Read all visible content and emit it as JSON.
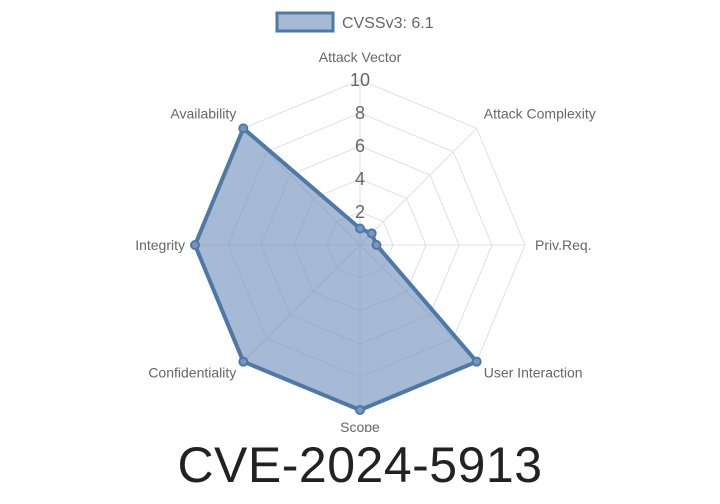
{
  "page": {
    "title": "CVE-2024-5913"
  },
  "chart_data": {
    "type": "radar",
    "categories": [
      "Attack Vector",
      "Attack Complexity",
      "Priv.Req.",
      "User Interaction",
      "Scope",
      "Confidentiality",
      "Integrity",
      "Availability"
    ],
    "series": [
      {
        "name": "CVSSv3: 6.1",
        "values": [
          1,
          1,
          1,
          10,
          10,
          10,
          10,
          10
        ]
      }
    ],
    "rlim": [
      0,
      10
    ],
    "ticks": [
      2,
      4,
      6,
      8,
      10
    ],
    "legend_position": "top",
    "grid": true,
    "colors": {
      "stroke": "#4e79a7",
      "fill": "#7795c0",
      "grid": "#e0e0e0",
      "text": "#666666"
    }
  }
}
